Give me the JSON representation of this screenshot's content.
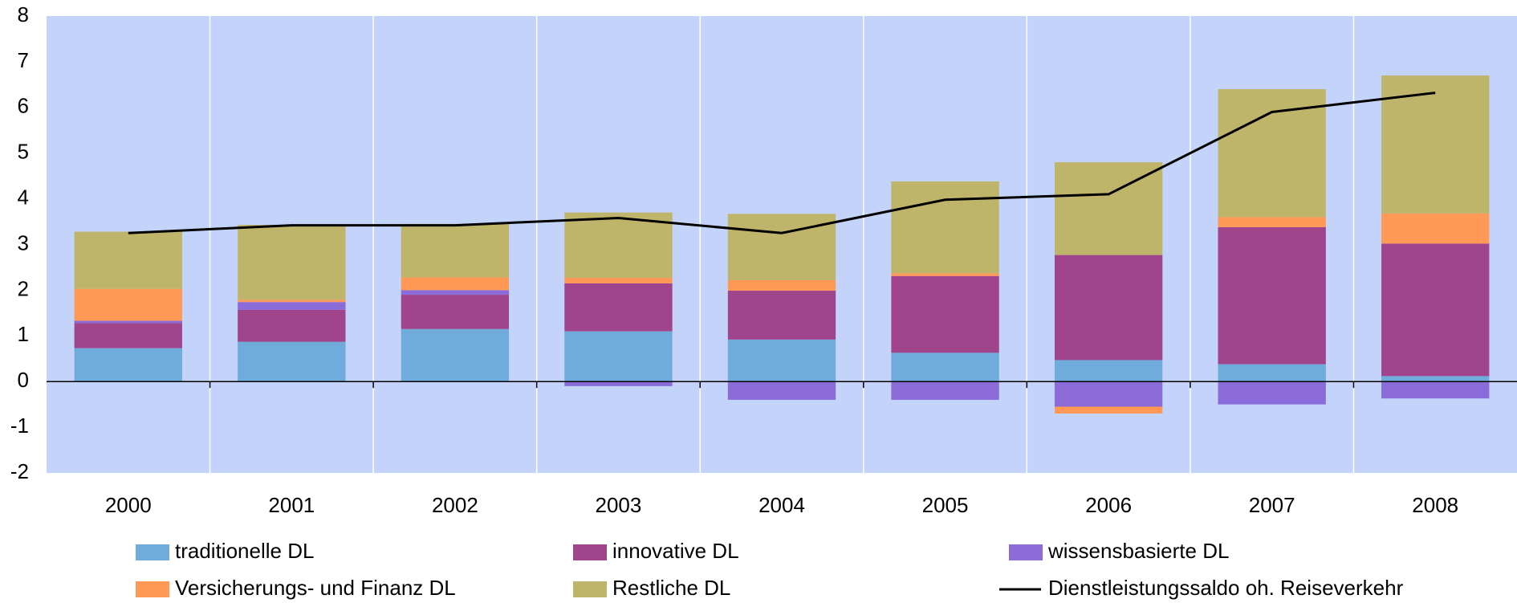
{
  "chart_data": {
    "type": "bar",
    "stacked": true,
    "categories": [
      "2000",
      "2001",
      "2002",
      "2003",
      "2004",
      "2005",
      "2006",
      "2007",
      "2008"
    ],
    "series": [
      {
        "name": "traditionelle DL",
        "color": "#6FACDB",
        "values": [
          0.73,
          0.87,
          1.15,
          1.1,
          0.92,
          0.63,
          0.47,
          0.38,
          0.12
        ]
      },
      {
        "name": "innovative DL",
        "color": "#A0448C",
        "values": [
          0.55,
          0.7,
          0.75,
          1.05,
          1.07,
          1.68,
          2.3,
          3.0,
          2.9
        ]
      },
      {
        "name": "wissensbasierte DL",
        "color": "#8A6BD8",
        "values": [
          0.05,
          0.17,
          0.1,
          -0.1,
          -0.4,
          -0.4,
          -0.55,
          -0.5,
          -0.37
        ]
      },
      {
        "name": "Versicherungs- und Finanz DL",
        "color": "#FF9955",
        "values": [
          0.7,
          0.05,
          0.28,
          0.12,
          0.23,
          0.06,
          -0.15,
          0.22,
          0.66
        ]
      },
      {
        "name": "Restliche DL",
        "color": "#BFB56A",
        "values": [
          1.25,
          1.64,
          1.17,
          1.43,
          1.45,
          2.01,
          2.03,
          2.8,
          3.02
        ]
      },
      {
        "name": "Dienstleistungssaldo oh. Reiseverkehr",
        "type": "line",
        "color": "#000000",
        "values": [
          3.25,
          3.42,
          3.42,
          3.58,
          3.25,
          3.98,
          4.1,
          5.9,
          6.32
        ]
      }
    ],
    "ylim": [
      -2,
      8
    ],
    "yticks": [
      -2,
      -1,
      0,
      1,
      2,
      3,
      4,
      5,
      6,
      7,
      8
    ],
    "background": "#C3D3FA",
    "grid": "vertical",
    "legend": "bottom"
  }
}
